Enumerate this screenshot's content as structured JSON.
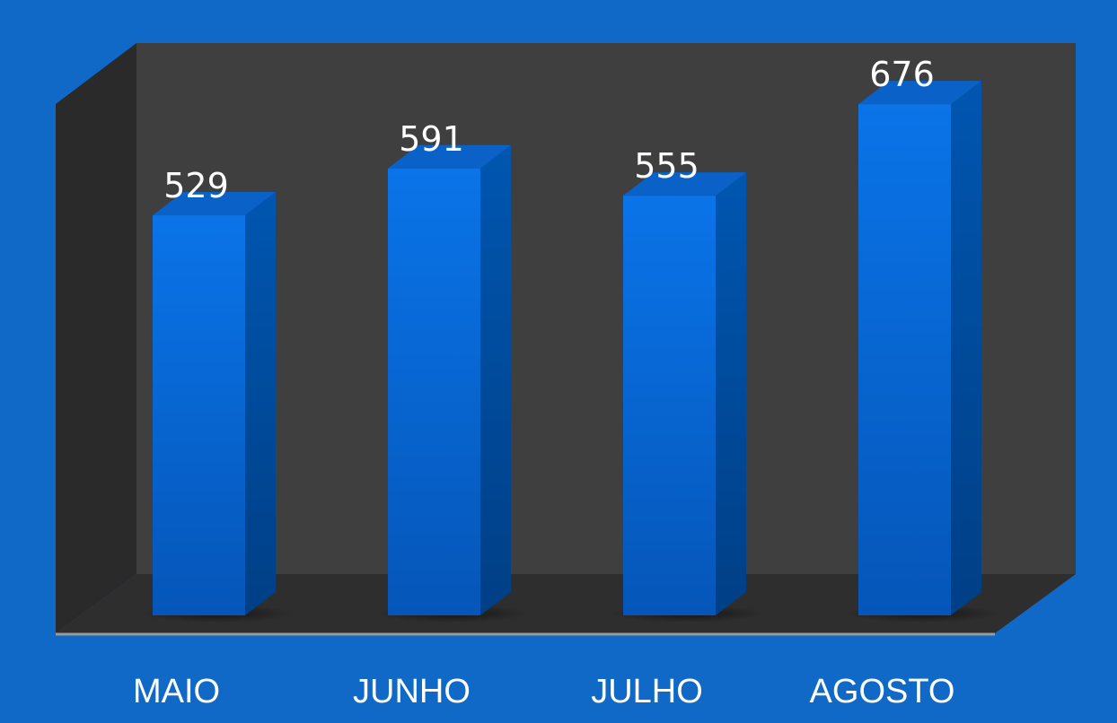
{
  "chart_data": {
    "type": "bar3d",
    "categories": [
      "MAIO",
      "JUNHO",
      "JULHO",
      "AGOSTO"
    ],
    "values": [
      529,
      591,
      555,
      676
    ],
    "color": "#0a6fe0"
  }
}
